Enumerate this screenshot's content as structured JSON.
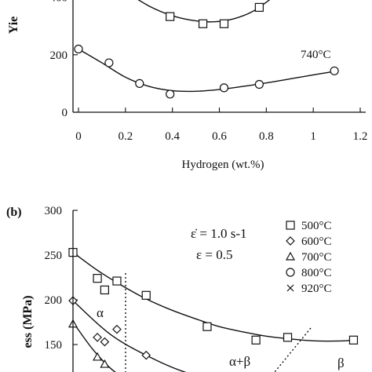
{
  "chart_data": [
    {
      "type": "scatter",
      "panel_label": "",
      "xlabel": "Hydrogen (wt.%)",
      "ylabel_visible": "Yie",
      "xlim": [
        0,
        1.2
      ],
      "ylim": [
        0,
        500
      ],
      "x_ticks": [
        "0",
        "0.2",
        "0.4",
        "0.6",
        "0.8",
        "1",
        "1.2"
      ],
      "y_ticks": [
        "0",
        "200",
        "400"
      ],
      "y_tick_values": [
        0,
        200,
        400
      ],
      "series": [
        {
          "name": "",
          "marker": "square",
          "x": [
            0.39,
            0.53,
            0.62,
            0.77
          ],
          "y": [
            333,
            308,
            308,
            365
          ],
          "fit_x": [
            0.18,
            0.3,
            0.4,
            0.5,
            0.58,
            0.66,
            0.74,
            0.82
          ],
          "fit_y": [
            430,
            370,
            336,
            318,
            315,
            325,
            350,
            395
          ]
        },
        {
          "name": "740°C",
          "marker": "circle",
          "x": [
            0.0,
            0.13,
            0.26,
            0.39,
            0.62,
            0.77,
            1.09
          ],
          "y": [
            220,
            172,
            100,
            63,
            85,
            97,
            144
          ],
          "fit_x": [
            0.0,
            0.1,
            0.2,
            0.3,
            0.4,
            0.5,
            0.6,
            0.7,
            0.8,
            0.9,
            1.0,
            1.09
          ],
          "fit_y": [
            220,
            172,
            122,
            90,
            75,
            73,
            79,
            90,
            102,
            116,
            130,
            142
          ]
        }
      ]
    },
    {
      "type": "scatter",
      "panel_label": "(b)",
      "ylabel_visible": "ess  (MPa)",
      "ylim": [
        100,
        300
      ],
      "y_ticks": [
        "150",
        "200",
        "250",
        "300"
      ],
      "y_tick_values": [
        150,
        200,
        250,
        300
      ],
      "x_plot_range": [
        0,
        1.2
      ],
      "annotations": {
        "strain_rate": "ε̇ = 1.0 s-1",
        "strain": "ε = 0.5",
        "alpha": "α",
        "alpha_beta": "α+β",
        "beta": "β"
      },
      "series": [
        {
          "name": "500°C",
          "marker": "square",
          "x": [
            0.0,
            0.1,
            0.13,
            0.18,
            0.3,
            0.55,
            0.75,
            0.88,
            1.15
          ],
          "y": [
            253,
            224,
            211,
            221,
            205,
            170,
            155,
            158,
            155
          ],
          "fit_x": [
            0.0,
            0.1,
            0.2,
            0.3,
            0.4,
            0.5,
            0.6,
            0.7,
            0.8,
            0.9,
            1.0,
            1.1,
            1.15
          ],
          "fit_y": [
            253,
            233,
            216,
            201,
            189,
            179,
            170,
            164,
            159,
            156,
            154,
            154,
            155
          ]
        },
        {
          "name": "600°C",
          "marker": "diamond",
          "x": [
            0.0,
            0.1,
            0.13,
            0.18,
            0.3
          ],
          "y": [
            199,
            158,
            153,
            167,
            138
          ]
        },
        {
          "name": "700°C",
          "marker": "triangle",
          "x": [
            0.0,
            0.1,
            0.13
          ],
          "y": [
            173,
            136,
            128
          ]
        },
        {
          "name": "800°C",
          "marker": "circle",
          "x": [],
          "y": []
        },
        {
          "name": "920°C",
          "marker": "cross",
          "x": [],
          "y": []
        }
      ]
    }
  ]
}
